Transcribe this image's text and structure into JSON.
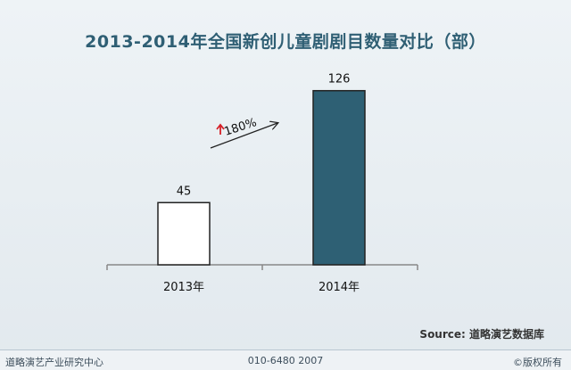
{
  "chart_data": {
    "type": "bar",
    "title": "2013-2014年全国新创儿童剧剧目数量对比（部）",
    "categories": [
      "2013年",
      "2014年"
    ],
    "values": [
      45,
      126
    ],
    "ylim": [
      0,
      140
    ],
    "grid": false,
    "annotation": {
      "text": "180%",
      "arrow": "up"
    },
    "colors": {
      "bar_2013": "#ffffff",
      "bar_2014": "#2e6074"
    }
  },
  "source": "Source: 道略演艺数据库",
  "footer": {
    "left": "道略演艺产业研究中心",
    "center": "010-6480 2007",
    "right": "©版权所有"
  }
}
